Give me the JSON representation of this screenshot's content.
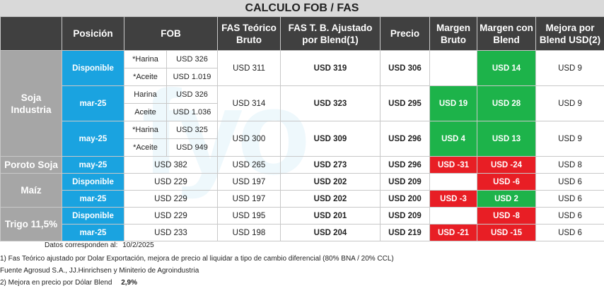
{
  "title": "CALCULO FOB / FAS",
  "headers": {
    "posicion": "Posición",
    "fob": "FOB",
    "fas_teorico": "FAS Teórico Bruto",
    "fas_ajustado": "FAS T. B. Ajustado por Blend(1)",
    "precio": "Precio",
    "margen_bruto": "Margen Bruto",
    "margen_blend": "Margen con Blend",
    "mejora": "Mejora por Blend USD(2)"
  },
  "groups": {
    "soja_industria": "Soja Industria",
    "poroto_soja": "Poroto Soja",
    "maiz": "Maíz",
    "trigo": "Trigo 11,5%"
  },
  "rows": {
    "soja_disp": {
      "pos": "Disponible",
      "harina_label": "*Harina",
      "harina_fob": "USD 326",
      "aceite_label": "*Aceite",
      "aceite_fob": "USD 1.019",
      "fas_teorico": "USD 311",
      "fas_ajustado": "USD 319",
      "precio": "USD 306",
      "margen_bruto": "",
      "margen_blend": "USD 14",
      "mejora": "USD 9"
    },
    "soja_mar": {
      "pos": "mar-25",
      "harina_label": "Harina",
      "harina_fob": "USD 326",
      "aceite_label": "Aceite",
      "aceite_fob": "USD 1.036",
      "fas_teorico": "USD 314",
      "fas_ajustado": "USD 323",
      "precio": "USD 295",
      "margen_bruto": "USD 19",
      "margen_blend": "USD 28",
      "mejora": "USD 9"
    },
    "soja_may": {
      "pos": "may-25",
      "harina_label": "*Harina",
      "harina_fob": "USD 325",
      "aceite_label": "*Aceite",
      "aceite_fob": "USD 949",
      "fas_teorico": "USD 300",
      "fas_ajustado": "USD 309",
      "precio": "USD 296",
      "margen_bruto": "USD 4",
      "margen_blend": "USD 13",
      "mejora": "USD 9"
    },
    "poroto_may": {
      "pos": "may-25",
      "fob": "USD 382",
      "fas_teorico": "USD 265",
      "fas_ajustado": "USD 273",
      "precio": "USD 296",
      "margen_bruto": "USD -31",
      "margen_blend": "USD -24",
      "mejora": "USD 8"
    },
    "maiz_disp": {
      "pos": "Disponible",
      "fob": "USD 229",
      "fas_teorico": "USD 197",
      "fas_ajustado": "USD 202",
      "precio": "USD 209",
      "margen_bruto": "",
      "margen_blend": "USD -6",
      "mejora": "USD 6"
    },
    "maiz_mar": {
      "pos": "mar-25",
      "fob": "USD 229",
      "fas_teorico": "USD 197",
      "fas_ajustado": "USD 202",
      "precio": "USD 200",
      "margen_bruto": "USD -3",
      "margen_blend": "USD 2",
      "mejora": "USD 6"
    },
    "trigo_disp": {
      "pos": "Disponible",
      "fob": "USD 229",
      "fas_teorico": "USD 195",
      "fas_ajustado": "USD 201",
      "precio": "USD 209",
      "margen_bruto": "",
      "margen_blend": "USD -8",
      "mejora": "USD 6"
    },
    "trigo_mar": {
      "pos": "mar-25",
      "fob": "USD 233",
      "fas_teorico": "USD 198",
      "fas_ajustado": "USD 204",
      "precio": "USD 219",
      "margen_bruto": "USD -21",
      "margen_blend": "USD -15",
      "mejora": "USD 6"
    }
  },
  "notes": {
    "date_label": "Datos corresponden al:",
    "date_value": "10/2/2025",
    "note1": "1) Fas Teórico ajustado por Dolar Exportación, mejora de precio al liquidar a tipo de cambio diferencial (80% BNA / 20% CCL)",
    "source": "Fuente Agrosud S.A., JJ.Hinrichsen y Miniterio de Agroindustria",
    "note2_label": "2) Mejora en precio por Dólar Blend",
    "note2_value": "2,9%"
  },
  "colors": {
    "header_bg": "#404040",
    "group_bg": "#a6a6a6",
    "position_bg": "#1aa3e0",
    "positive": "#1db34a",
    "negative": "#e81e25"
  }
}
